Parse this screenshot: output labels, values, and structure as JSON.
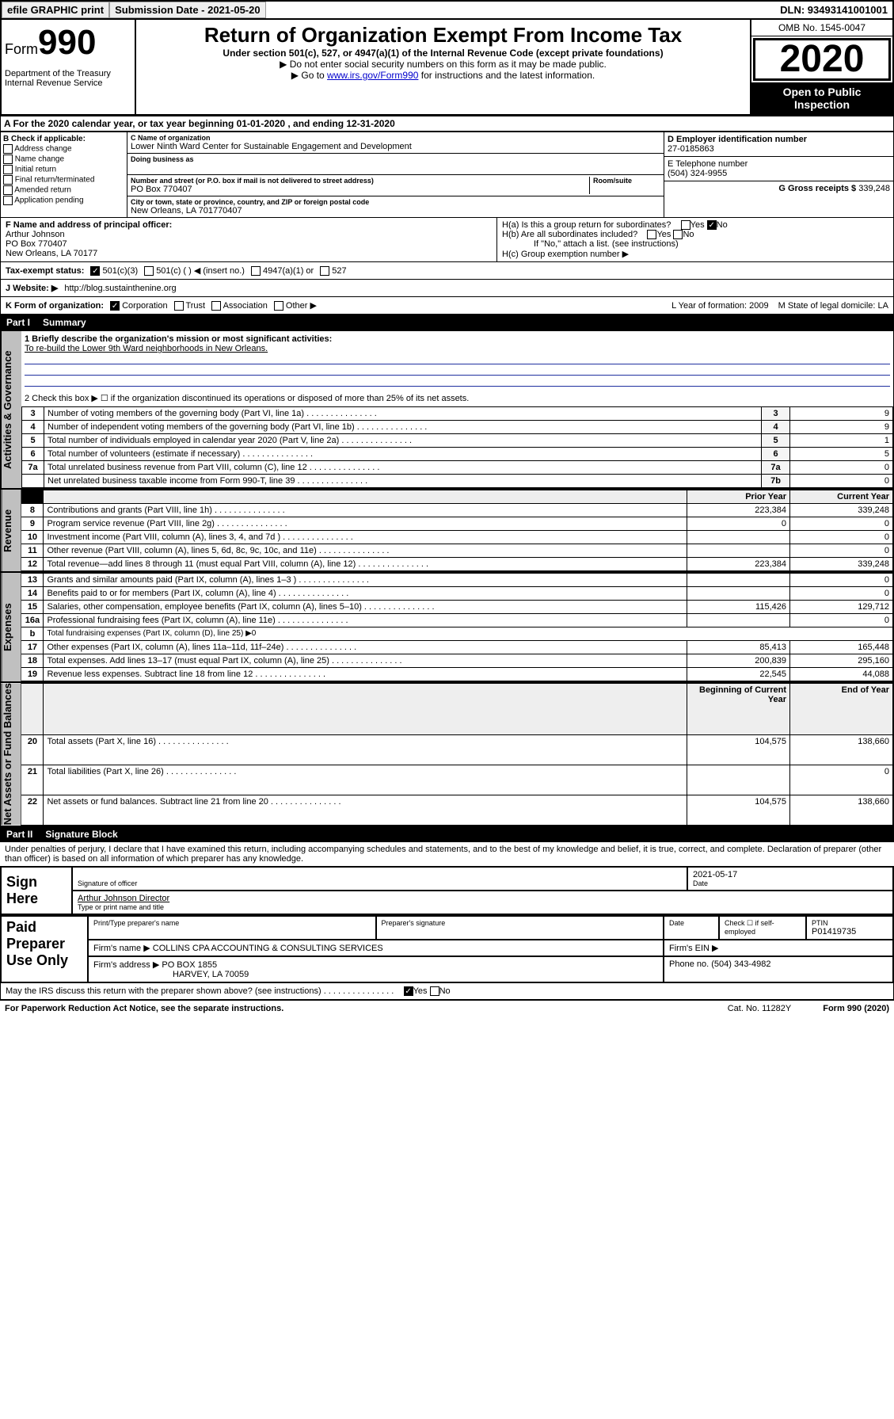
{
  "topbar": {
    "efile": "efile GRAPHIC print",
    "submission": "Submission Date - 2021-05-20",
    "dln": "DLN: 93493141001001"
  },
  "header": {
    "form_word": "Form",
    "form_num": "990",
    "title": "Return of Organization Exempt From Income Tax",
    "subtitle": "Under section 501(c), 527, or 4947(a)(1) of the Internal Revenue Code (except private foundations)",
    "note1": "▶ Do not enter social security numbers on this form as it may be made public.",
    "note2_pre": "▶ Go to ",
    "note2_link": "www.irs.gov/Form990",
    "note2_post": " for instructions and the latest information.",
    "dept": "Department of the Treasury\nInternal Revenue Service",
    "omb": "OMB No. 1545-0047",
    "year": "2020",
    "open": "Open to Public Inspection"
  },
  "rowA": "A For the 2020 calendar year, or tax year beginning 01-01-2020   , and ending 12-31-2020",
  "colB": {
    "label": "B Check if applicable:",
    "items": [
      "Address change",
      "Name change",
      "Initial return",
      "Final return/terminated",
      "Amended return",
      "Application pending"
    ]
  },
  "colC": {
    "name_lbl": "C Name of organization",
    "name": "Lower Ninth Ward Center for Sustainable Engagement and Development",
    "dba_lbl": "Doing business as",
    "dba": "",
    "addr_lbl": "Number and street (or P.O. box if mail is not delivered to street address)",
    "room_lbl": "Room/suite",
    "addr": "PO Box 770407",
    "city_lbl": "City or town, state or province, country, and ZIP or foreign postal code",
    "city": "New Orleans, LA  701770407"
  },
  "colDG": {
    "d_lbl": "D Employer identification number",
    "d": "27-0185863",
    "e_lbl": "E Telephone number",
    "e": "(504) 324-9955",
    "g_lbl": "G Gross receipts $ ",
    "g": "339,248"
  },
  "colF": {
    "lbl": "F Name and address of principal officer:",
    "name": "Arthur Johnson",
    "addr1": "PO Box 770407",
    "addr2": "New Orleans, LA  70177"
  },
  "colH": {
    "a": "H(a)  Is this a group return for subordinates?",
    "b": "H(b)  Are all subordinates included?",
    "bnote": "If \"No,\" attach a list. (see instructions)",
    "c": "H(c)  Group exemption number ▶"
  },
  "rowI": {
    "lbl": "Tax-exempt status:",
    "o1": "501(c)(3)",
    "o2": "501(c) (  ) ◀ (insert no.)",
    "o3": "4947(a)(1) or",
    "o4": "527"
  },
  "rowJ": {
    "lbl": "J   Website: ▶",
    "val": "http://blog.sustainthenine.org"
  },
  "rowK": {
    "lbl": "K Form of organization:",
    "o1": "Corporation",
    "o2": "Trust",
    "o3": "Association",
    "o4": "Other ▶",
    "l": "L Year of formation: 2009",
    "m": "M State of legal domicile: LA"
  },
  "partI": {
    "num": "Part I",
    "title": "Summary"
  },
  "mission_lbl": "1  Briefly describe the organization's mission or most significant activities:",
  "mission": "To re-build the Lower 9th Ward neighborhoods in New Orleans.",
  "line2": "2   Check this box ▶ ☐  if the organization discontinued its operations or disposed of more than 25% of its net assets.",
  "govRows": [
    {
      "n": "3",
      "t": "Number of voting members of the governing body (Part VI, line 1a)",
      "k": "3",
      "v": "9"
    },
    {
      "n": "4",
      "t": "Number of independent voting members of the governing body (Part VI, line 1b)",
      "k": "4",
      "v": "9"
    },
    {
      "n": "5",
      "t": "Total number of individuals employed in calendar year 2020 (Part V, line 2a)",
      "k": "5",
      "v": "1"
    },
    {
      "n": "6",
      "t": "Total number of volunteers (estimate if necessary)",
      "k": "6",
      "v": "5"
    },
    {
      "n": "7a",
      "t": "Total unrelated business revenue from Part VIII, column (C), line 12",
      "k": "7a",
      "v": "0"
    },
    {
      "n": "",
      "t": "Net unrelated business taxable income from Form 990-T, line 39",
      "k": "7b",
      "v": "0"
    }
  ],
  "col_hdr": {
    "prior": "Prior Year",
    "current": "Current Year"
  },
  "revRows": [
    {
      "n": "8",
      "t": "Contributions and grants (Part VIII, line 1h)",
      "p": "223,384",
      "c": "339,248"
    },
    {
      "n": "9",
      "t": "Program service revenue (Part VIII, line 2g)",
      "p": "0",
      "c": "0"
    },
    {
      "n": "10",
      "t": "Investment income (Part VIII, column (A), lines 3, 4, and 7d )",
      "p": "",
      "c": "0"
    },
    {
      "n": "11",
      "t": "Other revenue (Part VIII, column (A), lines 5, 6d, 8c, 9c, 10c, and 11e)",
      "p": "",
      "c": "0"
    },
    {
      "n": "12",
      "t": "Total revenue—add lines 8 through 11 (must equal Part VIII, column (A), line 12)",
      "p": "223,384",
      "c": "339,248"
    }
  ],
  "expRows": [
    {
      "n": "13",
      "t": "Grants and similar amounts paid (Part IX, column (A), lines 1–3 )",
      "p": "",
      "c": "0"
    },
    {
      "n": "14",
      "t": "Benefits paid to or for members (Part IX, column (A), line 4)",
      "p": "",
      "c": "0"
    },
    {
      "n": "15",
      "t": "Salaries, other compensation, employee benefits (Part IX, column (A), lines 5–10)",
      "p": "115,426",
      "c": "129,712"
    },
    {
      "n": "16a",
      "t": "Professional fundraising fees (Part IX, column (A), line 11e)",
      "p": "",
      "c": "0"
    },
    {
      "n": "b",
      "t": "Total fundraising expenses (Part IX, column (D), line 25) ▶0",
      "p": "—",
      "c": "—"
    },
    {
      "n": "17",
      "t": "Other expenses (Part IX, column (A), lines 11a–11d, 11f–24e)",
      "p": "85,413",
      "c": "165,448"
    },
    {
      "n": "18",
      "t": "Total expenses. Add lines 13–17 (must equal Part IX, column (A), line 25)",
      "p": "200,839",
      "c": "295,160"
    },
    {
      "n": "19",
      "t": "Revenue less expenses. Subtract line 18 from line 12",
      "p": "22,545",
      "c": "44,088"
    }
  ],
  "col_hdr2": {
    "prior": "Beginning of Current Year",
    "current": "End of Year"
  },
  "netRows": [
    {
      "n": "20",
      "t": "Total assets (Part X, line 16)",
      "p": "104,575",
      "c": "138,660"
    },
    {
      "n": "21",
      "t": "Total liabilities (Part X, line 26)",
      "p": "",
      "c": "0"
    },
    {
      "n": "22",
      "t": "Net assets or fund balances. Subtract line 21 from line 20",
      "p": "104,575",
      "c": "138,660"
    }
  ],
  "vtabs": {
    "gov": "Activities & Governance",
    "rev": "Revenue",
    "exp": "Expenses",
    "net": "Net Assets or Fund Balances"
  },
  "partII": {
    "num": "Part II",
    "title": "Signature Block"
  },
  "perjury": "Under penalties of perjury, I declare that I have examined this return, including accompanying schedules and statements, and to the best of my knowledge and belief, it is true, correct, and complete. Declaration of preparer (other than officer) is based on all information of which preparer has any knowledge.",
  "sign": {
    "here": "Sign Here",
    "sig_lbl": "Signature of officer",
    "date": "2021-05-17",
    "date_lbl": "Date",
    "name": "Arthur Johnson  Director",
    "name_lbl": "Type or print name and title"
  },
  "paid": {
    "lbl": "Paid Preparer Use Only",
    "c1": "Print/Type preparer's name",
    "c2": "Preparer's signature",
    "c3": "Date",
    "c4": "Check ☐ if self-employed",
    "c5": "PTIN",
    "ptin": "P01419735",
    "firm_lbl": "Firm's name    ▶",
    "firm": "COLLINS CPA ACCOUNTING & CONSULTING SERVICES",
    "ein_lbl": "Firm's EIN ▶",
    "addr_lbl": "Firm's address ▶",
    "addr": "PO BOX 1855",
    "addr2": "HARVEY, LA  70059",
    "phone_lbl": "Phone no. ",
    "phone": "(504) 343-4982"
  },
  "discuss": "May the IRS discuss this return with the preparer shown above? (see instructions)",
  "footer": {
    "l": "For Paperwork Reduction Act Notice, see the separate instructions.",
    "m": "Cat. No. 11282Y",
    "r": "Form 990 (2020)"
  },
  "colors": {
    "link": "#0000cc",
    "border": "#000000",
    "bg": "#ffffff",
    "gray": "#c0c0c0"
  }
}
